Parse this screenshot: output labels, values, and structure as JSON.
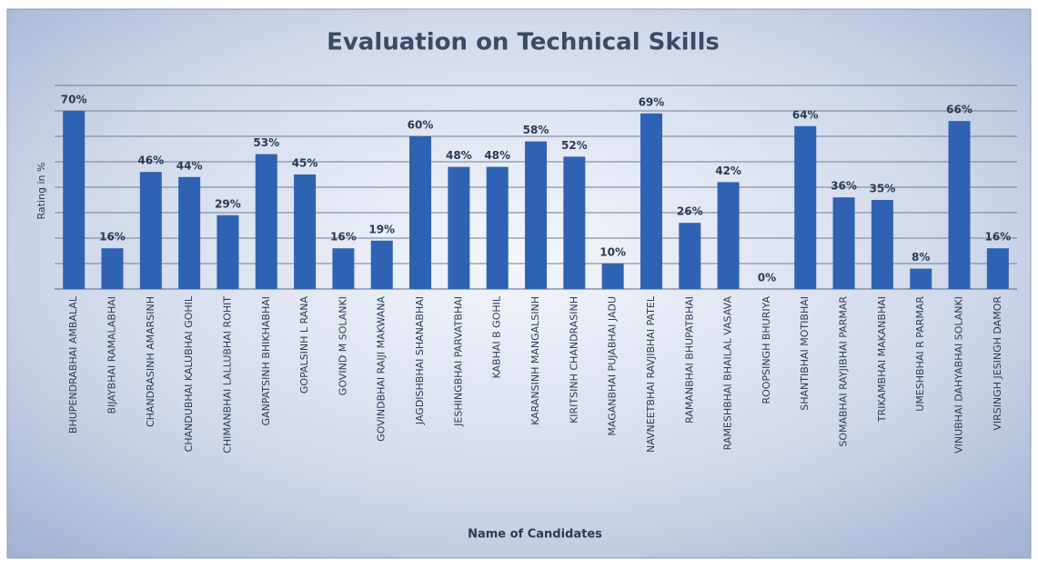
{
  "chart_data": {
    "type": "bar",
    "title": "Evaluation on Technical Skills",
    "y_label": "Rating in %",
    "x_label": "Name of Candidates",
    "categories": [
      "BHUPENDRABHAI AMBALAL",
      "BIJAYBHAI RAMALABHAI",
      "CHANDRASINH AMARSINH",
      "CHANDUBHAI KALUBHAI GOHIL",
      "CHIMANBHAI LALLUBHAI ROHIT",
      "GANPATSINH BHIKHABHAI",
      "GOPALSINH L RANA",
      "GOVIND M SOLANKI",
      "GOVINDBHAI RAIJI MAKWANA",
      "JAGDISHBHAI SHANABHAI",
      "JESHINGBHAI PARVATBHAI",
      "KABHAI B GOHIL",
      "KARANSINH MANGALSINH",
      "KIRITSINH CHANDRASINH",
      "MAGANBHAI PUJABHAI JADU",
      "NAVNEETBHAI RAVJIBHAI PATEL",
      "RAMANBHAI BHUPATBHAI",
      "RAMESHBHAI BHAILAL VASAVA",
      "ROOPSINGH BHURIYA",
      "SHANTIBHAI MOTIBHAI",
      "SOMABHAI RAYJIBHAI PARMAR",
      "TRIKAMBHAI MAKANBHAI",
      "UMESHBHAI R PARMAR",
      "VINUBHAI DAHYABHAI SOLANKI",
      "VIRSINGH JESINGH DAMOR"
    ],
    "values": [
      70,
      16,
      46,
      44,
      29,
      53,
      45,
      16,
      19,
      60,
      48,
      48,
      58,
      52,
      10,
      69,
      26,
      42,
      0,
      64,
      36,
      35,
      8,
      66,
      16
    ],
    "value_labels": [
      "70%",
      "16%",
      "46%",
      "44%",
      "29%",
      "53%",
      "45%",
      "16%",
      "19%",
      "60%",
      "48%",
      "48%",
      "58%",
      "52%",
      "10%",
      "69%",
      "26%",
      "42%",
      "0%",
      "64%",
      "36%",
      "35%",
      "8%",
      "66%",
      "16%"
    ],
    "color": "#2f62b3",
    "ylim": [
      0,
      80
    ],
    "yticks": [
      0,
      10,
      20,
      30,
      40,
      50,
      60,
      70,
      80
    ],
    "grid": true
  }
}
